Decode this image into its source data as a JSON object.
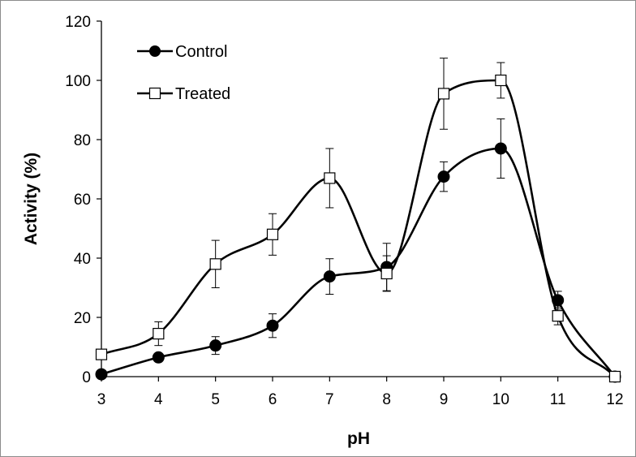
{
  "chart_data": {
    "type": "line",
    "title": "",
    "xlabel": "pH",
    "ylabel": "Activity (%)",
    "xlim": [
      3,
      12
    ],
    "ylim": [
      0,
      120
    ],
    "x_ticks": [
      3,
      4,
      5,
      6,
      7,
      8,
      9,
      10,
      11,
      12
    ],
    "y_ticks": [
      0,
      20,
      40,
      60,
      80,
      100,
      120
    ],
    "x_tick_labels": [
      "3",
      "4",
      "5",
      "6",
      "7",
      "8",
      "9",
      "10",
      "11",
      "12"
    ],
    "y_tick_labels": [
      "0",
      "20",
      "40",
      "60",
      "80",
      "100",
      "120"
    ],
    "grid": false,
    "legend_position": "top-left",
    "series": [
      {
        "name": "Control",
        "marker": "filled-circle",
        "color": "#000000",
        "x": [
          3,
          4,
          5,
          6,
          7,
          8,
          9,
          10,
          11,
          12
        ],
        "values": [
          0.8,
          6.5,
          10.5,
          17.2,
          33.8,
          37.0,
          67.5,
          77.0,
          25.8,
          0.0
        ],
        "errors": [
          0,
          0,
          3.0,
          4.0,
          6.0,
          8.0,
          5.0,
          10.0,
          3.0,
          0
        ]
      },
      {
        "name": "Treated",
        "marker": "open-square",
        "color": "#000000",
        "x": [
          3,
          4,
          5,
          6,
          7,
          8,
          9,
          10,
          11,
          12
        ],
        "values": [
          7.5,
          14.5,
          38.0,
          48.0,
          67.0,
          34.8,
          95.5,
          100.0,
          20.5,
          0.0
        ],
        "errors": [
          0,
          4.0,
          8.0,
          7.0,
          10.0,
          6.0,
          12.0,
          6.0,
          3.0,
          0
        ]
      }
    ]
  }
}
